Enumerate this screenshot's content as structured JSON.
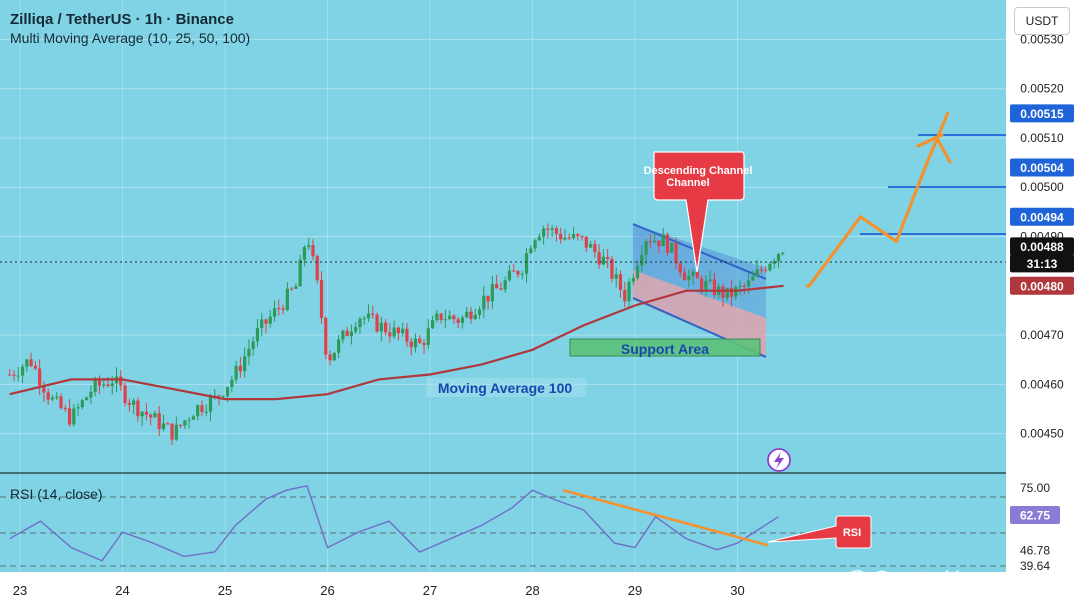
{
  "header": {
    "title": "Zilliqa / TetherUS · 1h · Binance",
    "indicator": "Multi Moving Average (10, 25, 50, 100)"
  },
  "currency_button": "USDT",
  "watermark": "@ Crypto Hossain",
  "colors": {
    "background": "#7fd3e4",
    "up": "#2d9a5a",
    "down": "#e0404a",
    "ma100": "#b0373c",
    "projection": "#f3922f",
    "channel_fill": "#4f86d8",
    "level_line": "#1f63d8",
    "rsi_line": "#6f6fc8"
  },
  "chart_data": [
    {
      "type": "line",
      "title": "Zilliqa / TetherUS · 1h · Binance",
      "xlabel": "",
      "ylabel": "",
      "ylim": [
        0.00442,
        0.00538
      ],
      "x_ticks": [
        "23",
        "24",
        "25",
        "26",
        "27",
        "28",
        "29",
        "30"
      ],
      "y_ticks": [
        "0.00530",
        "0.00520",
        "0.00510",
        "0.00500",
        "0.00490",
        "0.00470",
        "0.00460",
        "0.00450"
      ],
      "series": [
        {
          "name": "",
          "x": [
            22.9,
            23.1,
            23.3,
            23.5,
            23.7,
            23.9,
            24.1,
            24.3,
            24.5,
            24.7,
            24.9,
            25.1,
            25.3,
            25.5,
            25.7,
            25.8,
            25.9,
            26.0,
            26.1,
            26.3,
            26.5,
            26.7,
            26.9,
            27.1,
            27.3,
            27.5,
            27.7,
            27.9,
            28.0,
            28.1,
            28.3,
            28.5,
            28.7,
            28.9,
            29.1,
            29.3,
            29.5,
            29.7,
            29.9,
            30.1,
            30.3,
            30.45
          ],
          "values": [
            0.00462,
            0.00465,
            0.00457,
            0.00453,
            0.00459,
            0.00461,
            0.00456,
            0.00453,
            0.0045,
            0.00455,
            0.00457,
            0.00462,
            0.0047,
            0.00475,
            0.0048,
            0.00491,
            0.0048,
            0.00465,
            0.00468,
            0.00474,
            0.00472,
            0.0047,
            0.00468,
            0.00474,
            0.00473,
            0.00477,
            0.0048,
            0.00484,
            0.0049,
            0.00492,
            0.0049,
            0.00489,
            0.00485,
            0.00478,
            0.0049,
            0.00489,
            0.00482,
            0.0048,
            0.00478,
            0.0048,
            0.00485,
            0.00488
          ]
        },
        {
          "name": "Moving Average 100",
          "x": [
            22.9,
            23.5,
            24.0,
            24.5,
            25.0,
            25.5,
            26.0,
            26.5,
            27.0,
            27.5,
            28.0,
            28.5,
            29.0,
            29.5,
            30.0,
            30.45
          ],
          "values": [
            0.00458,
            0.00461,
            0.00461,
            0.00459,
            0.00457,
            0.00457,
            0.00458,
            0.00461,
            0.00462,
            0.00464,
            0.00467,
            0.00472,
            0.00476,
            0.00479,
            0.00479,
            0.0048
          ]
        },
        {
          "name": "Projection",
          "x": [
            30.68,
            30.7,
            31.2,
            31.55,
            31.85,
            32.05
          ],
          "values": [
            0.0048,
            0.0048,
            0.00494,
            0.00489,
            0.00505,
            0.00515
          ]
        }
      ],
      "price_labels": [
        {
          "text": "0.00515",
          "value": 0.00515
        },
        {
          "text": "0.00504",
          "value": 0.00504
        },
        {
          "text": "0.00494",
          "value": 0.00494
        },
        {
          "text": "0.00488",
          "value": 0.00488
        },
        {
          "text": "31:13",
          "value": 0.00485
        },
        {
          "text": "0.00480",
          "value": 0.0048
        }
      ],
      "annotations": [
        "Descending Channel",
        "Support Area",
        "Moving Average 100"
      ]
    },
    {
      "type": "line",
      "title": "RSI (14, close)",
      "xlabel": "",
      "ylabel": "",
      "ylim": [
        35,
        80
      ],
      "y_ticks": [
        "75.00",
        "46.78",
        "39.64"
      ],
      "current_value": "62.75",
      "series": [
        {
          "name": "RSI",
          "x": [
            22.9,
            23.2,
            23.5,
            23.8,
            24.0,
            24.3,
            24.6,
            24.9,
            25.1,
            25.4,
            25.6,
            25.8,
            26.0,
            26.3,
            26.6,
            26.9,
            27.2,
            27.5,
            27.8,
            28.0,
            28.2,
            28.5,
            28.8,
            29.0,
            29.2,
            29.5,
            29.8,
            30.0,
            30.2,
            30.4
          ],
          "values": [
            52,
            60,
            48,
            42,
            55,
            50,
            44,
            46,
            58,
            70,
            74,
            76,
            48,
            55,
            60,
            46,
            52,
            58,
            66,
            74,
            70,
            65,
            50,
            48,
            62,
            52,
            47,
            50,
            56,
            62
          ]
        },
        {
          "name": "RSI trendline",
          "x": [
            28.3,
            30.3
          ],
          "values": [
            74,
            49
          ]
        }
      ],
      "annotations": [
        "RSI"
      ]
    }
  ]
}
